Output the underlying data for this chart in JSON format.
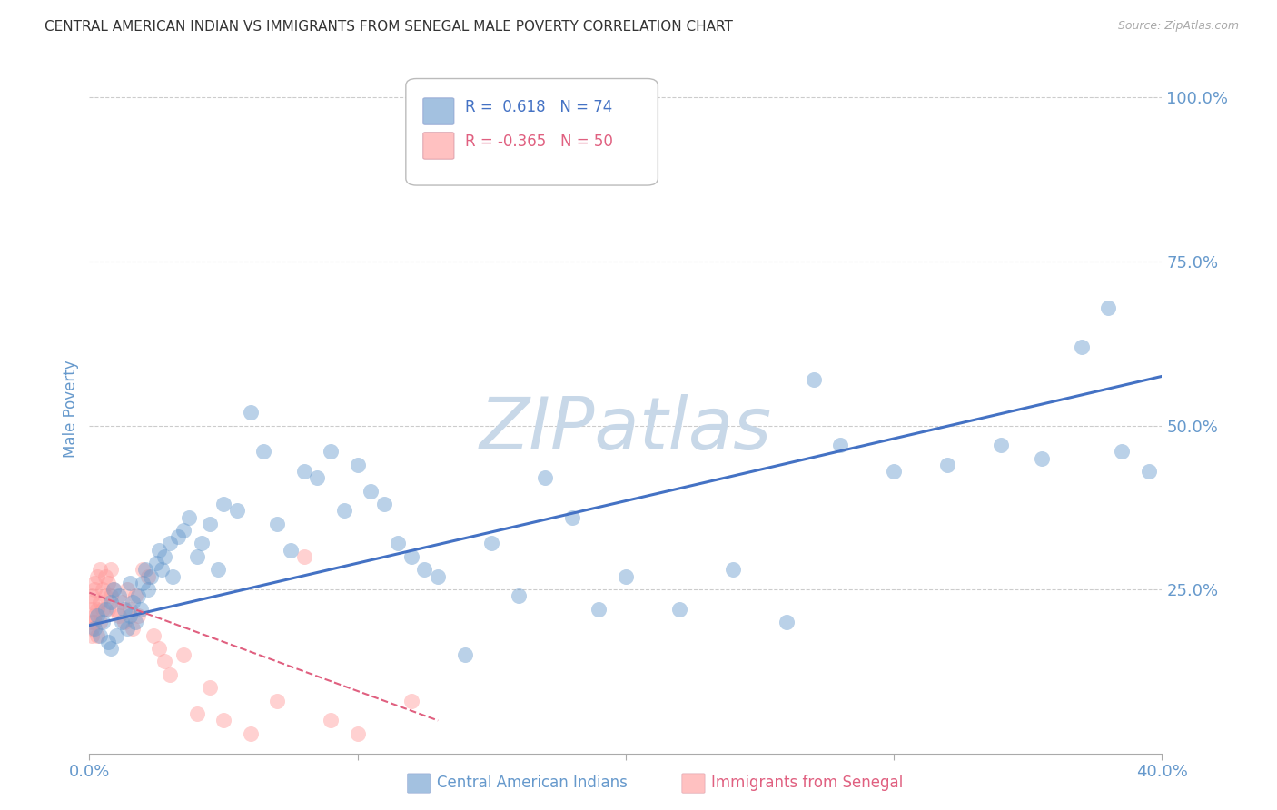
{
  "title": "CENTRAL AMERICAN INDIAN VS IMMIGRANTS FROM SENEGAL MALE POVERTY CORRELATION CHART",
  "source": "Source: ZipAtlas.com",
  "ylabel": "Male Poverty",
  "ytick_labels": [
    "25.0%",
    "50.0%",
    "75.0%",
    "100.0%"
  ],
  "ytick_values": [
    0.25,
    0.5,
    0.75,
    1.0
  ],
  "xmin": 0.0,
  "xmax": 0.4,
  "ymin": 0.0,
  "ymax": 1.05,
  "legend_label_blue": "Central American Indians",
  "legend_label_pink": "Immigrants from Senegal",
  "blue_line_color": "#4472c4",
  "pink_line_color": "#e06080",
  "dot_color_blue": "#6699cc",
  "dot_color_pink": "#ff9999",
  "watermark": "ZIPatlas",
  "watermark_color": "#c8d8e8",
  "grid_color": "#cccccc",
  "background_color": "#ffffff",
  "title_color": "#333333",
  "tick_color": "#6699cc",
  "blue_scatter_x": [
    0.002,
    0.003,
    0.004,
    0.005,
    0.006,
    0.007,
    0.008,
    0.008,
    0.009,
    0.01,
    0.011,
    0.012,
    0.013,
    0.014,
    0.015,
    0.015,
    0.016,
    0.017,
    0.018,
    0.019,
    0.02,
    0.021,
    0.022,
    0.023,
    0.025,
    0.026,
    0.027,
    0.028,
    0.03,
    0.031,
    0.033,
    0.035,
    0.037,
    0.04,
    0.042,
    0.045,
    0.048,
    0.05,
    0.055,
    0.06,
    0.065,
    0.07,
    0.075,
    0.08,
    0.085,
    0.09,
    0.095,
    0.1,
    0.105,
    0.11,
    0.115,
    0.12,
    0.125,
    0.13,
    0.14,
    0.15,
    0.16,
    0.17,
    0.18,
    0.19,
    0.2,
    0.22,
    0.24,
    0.26,
    0.27,
    0.28,
    0.3,
    0.32,
    0.34,
    0.355,
    0.37,
    0.38,
    0.385,
    0.395
  ],
  "blue_scatter_y": [
    0.19,
    0.21,
    0.18,
    0.2,
    0.22,
    0.17,
    0.23,
    0.16,
    0.25,
    0.18,
    0.24,
    0.2,
    0.22,
    0.19,
    0.21,
    0.26,
    0.23,
    0.2,
    0.24,
    0.22,
    0.26,
    0.28,
    0.25,
    0.27,
    0.29,
    0.31,
    0.28,
    0.3,
    0.32,
    0.27,
    0.33,
    0.34,
    0.36,
    0.3,
    0.32,
    0.35,
    0.28,
    0.38,
    0.37,
    0.52,
    0.46,
    0.35,
    0.31,
    0.43,
    0.42,
    0.46,
    0.37,
    0.44,
    0.4,
    0.38,
    0.32,
    0.3,
    0.28,
    0.27,
    0.15,
    0.32,
    0.24,
    0.42,
    0.36,
    0.22,
    0.27,
    0.22,
    0.28,
    0.2,
    0.57,
    0.47,
    0.43,
    0.44,
    0.47,
    0.45,
    0.62,
    0.68,
    0.46,
    0.43
  ],
  "pink_scatter_x": [
    0.001,
    0.001,
    0.001,
    0.001,
    0.001,
    0.001,
    0.002,
    0.002,
    0.002,
    0.002,
    0.003,
    0.003,
    0.003,
    0.004,
    0.004,
    0.004,
    0.005,
    0.005,
    0.006,
    0.006,
    0.007,
    0.007,
    0.008,
    0.008,
    0.009,
    0.01,
    0.011,
    0.012,
    0.013,
    0.014,
    0.015,
    0.016,
    0.017,
    0.018,
    0.02,
    0.022,
    0.024,
    0.026,
    0.028,
    0.03,
    0.035,
    0.04,
    0.045,
    0.05,
    0.06,
    0.07,
    0.08,
    0.09,
    0.1,
    0.12
  ],
  "pink_scatter_y": [
    0.2,
    0.22,
    0.18,
    0.24,
    0.19,
    0.23,
    0.21,
    0.25,
    0.2,
    0.26,
    0.22,
    0.18,
    0.27,
    0.2,
    0.23,
    0.28,
    0.22,
    0.25,
    0.24,
    0.27,
    0.22,
    0.26,
    0.24,
    0.28,
    0.25,
    0.22,
    0.21,
    0.23,
    0.2,
    0.25,
    0.22,
    0.19,
    0.24,
    0.21,
    0.28,
    0.27,
    0.18,
    0.16,
    0.14,
    0.12,
    0.15,
    0.06,
    0.1,
    0.05,
    0.03,
    0.08,
    0.3,
    0.05,
    0.03,
    0.08
  ],
  "blue_line_x0": 0.0,
  "blue_line_y0": 0.195,
  "blue_line_x1": 0.4,
  "blue_line_y1": 0.575,
  "pink_line_x0": 0.0,
  "pink_line_y0": 0.245,
  "pink_line_x1": 0.13,
  "pink_line_y1": 0.05
}
